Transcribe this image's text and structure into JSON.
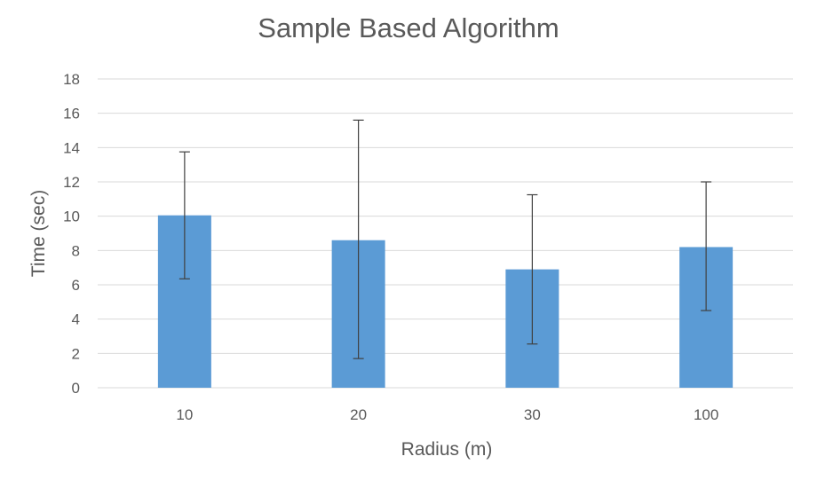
{
  "chart_data": {
    "type": "bar",
    "title": "Sample Based Algorithm",
    "xlabel": "Radius (m)",
    "ylabel": "Time (sec)",
    "categories": [
      "10",
      "20",
      "30",
      "100"
    ],
    "values": [
      10.05,
      8.6,
      6.9,
      8.2
    ],
    "error_low": [
      6.35,
      1.7,
      2.55,
      4.5
    ],
    "error_high": [
      13.75,
      15.6,
      11.25,
      12.0
    ],
    "ylim": [
      0,
      18
    ],
    "yticks": [
      "0",
      "2",
      "4",
      "6",
      "8",
      "10",
      "12",
      "14",
      "16",
      "18"
    ],
    "grid": true,
    "legend": "none",
    "colors": {
      "bar": "#5B9BD5",
      "grid": "#D9D9D9",
      "error_bar": "#404040",
      "text": "#595959"
    }
  }
}
